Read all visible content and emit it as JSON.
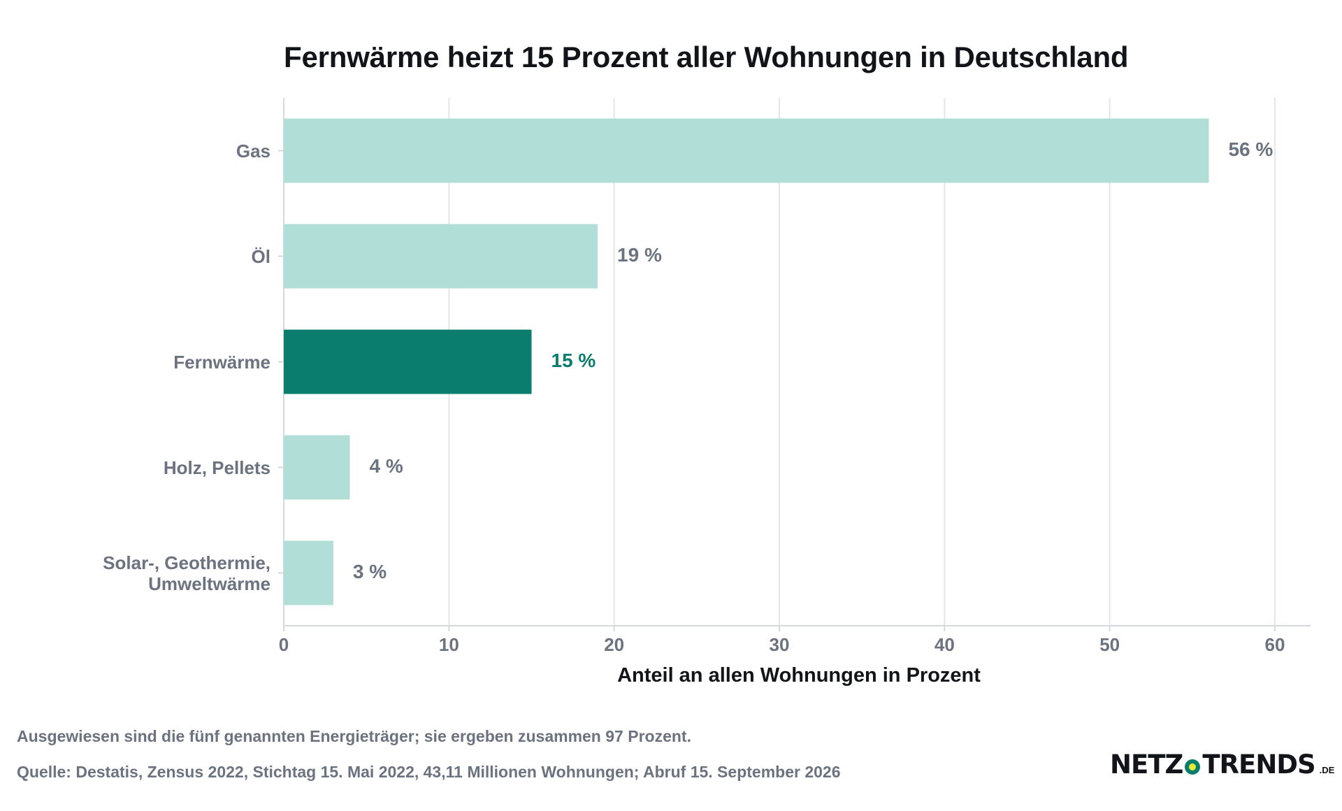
{
  "chart_data": {
    "type": "bar",
    "orientation": "horizontal",
    "title": "Fernwärme heizt 15 Prozent aller Wohnungen in Deutschland",
    "xlabel": "Anteil an allen Wohnungen in Prozent",
    "ylabel": "",
    "xlim": [
      0,
      62
    ],
    "xticks": [
      "0",
      "10",
      "20",
      "30",
      "40",
      "50",
      "60"
    ],
    "grid": "vertical",
    "categories": [
      "Gas",
      "Öl",
      "Fernwärme",
      "Holz, Pellets",
      "Solar-, Geothermie,\nUmweltwärme"
    ],
    "values": [
      56,
      19,
      15,
      4,
      3
    ],
    "value_labels": [
      "56 %",
      "19 %",
      "15 %",
      "4 %",
      "3 %"
    ],
    "highlight_index": 2,
    "colors": {
      "bar": "#b1ded7",
      "highlight": "#0a7d6f",
      "grid": "#e3e6e8",
      "axis": "#d6d9dc",
      "label": "#6b7280",
      "highlight_label": "#0a7d6f"
    }
  },
  "footer": {
    "note": "Ausgewiesen sind die fünf genannten Energieträger; sie ergeben zusammen 97 Prozent.",
    "source": "Quelle: Destatis, Zensus 2022, Stichtag 15. Mai 2022, 43,11 Millionen Wohnungen; Abruf 15. September 2026"
  },
  "logo": {
    "left": "NETZ",
    "right": "TRENDS",
    "tld": ".DE"
  }
}
